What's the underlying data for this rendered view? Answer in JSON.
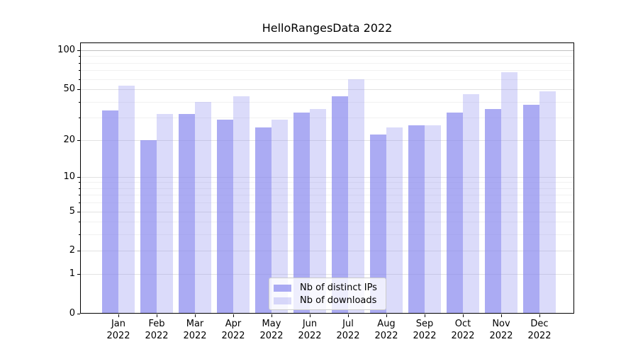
{
  "figure": {
    "title": "HelloRangesData 2022"
  },
  "chart_data": {
    "type": "bar",
    "title": "HelloRangesData 2022",
    "xlabel": "",
    "ylabel": "",
    "y_scale": "log1p",
    "ylim": [
      0,
      115
    ],
    "grid": "horizontal, major and minor",
    "legend_position": "lower center, inside axes",
    "y_ticks": [
      0,
      1,
      2,
      5,
      10,
      20,
      50,
      100
    ],
    "y_minor_ticks": [
      3,
      4,
      6,
      7,
      8,
      9,
      30,
      40,
      60,
      70,
      80,
      90
    ],
    "categories": [
      "Jan 2022",
      "Feb 2022",
      "Mar 2022",
      "Apr 2022",
      "May 2022",
      "Jun 2022",
      "Jul 2022",
      "Aug 2022",
      "Sep 2022",
      "Oct 2022",
      "Nov 2022",
      "Dec 2022"
    ],
    "month_labels": [
      "Jan",
      "Feb",
      "Mar",
      "Apr",
      "May",
      "Jun",
      "Jul",
      "Aug",
      "Sep",
      "Oct",
      "Nov",
      "Dec"
    ],
    "year_label": "2022",
    "series": [
      {
        "name": "Nb of distinct IPs",
        "values": [
          34,
          20,
          32,
          29,
          25,
          33,
          44,
          22,
          26,
          33,
          35,
          38
        ],
        "color": "#8888ee",
        "opacity": 0.7,
        "css_color": "rgba(136,136,238,0.7)"
      },
      {
        "name": "Nb of downloads",
        "values": [
          53,
          32,
          40,
          44,
          29,
          35,
          60,
          25,
          26,
          46,
          68,
          48
        ],
        "color": "#8888ee",
        "opacity": 0.3,
        "css_color": "rgba(136,136,238,0.3)"
      }
    ],
    "colors": {
      "background": "#ffffff",
      "axis": "#000000",
      "text": "#000000",
      "grid_major": "#e2e2e2",
      "grid_minor": "#f1f1f1",
      "grid_top_100": "#c0c0c0"
    }
  }
}
